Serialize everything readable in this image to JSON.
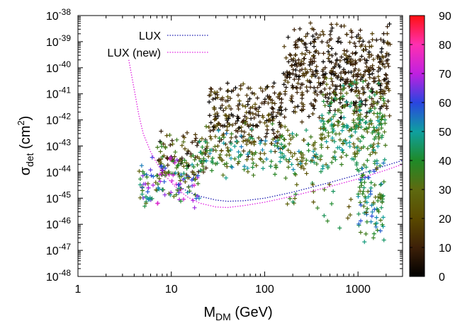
{
  "chart_data": {
    "type": "scatter",
    "xlabel": {
      "main": "M",
      "sub": "DM",
      "rest": " (GeV)"
    },
    "ylabel": {
      "main": "σ",
      "sub": "det",
      "rest": " (cm",
      "sup": "2",
      "close": ")"
    },
    "x_scale": "log",
    "y_scale": "log",
    "xlim": [
      1,
      3000
    ],
    "ylim": [
      1e-48,
      1e-38
    ],
    "x_ticks": [
      {
        "value": 1,
        "label": "1"
      },
      {
        "value": 10,
        "label": "10"
      },
      {
        "value": 100,
        "label": "100"
      },
      {
        "value": 1000,
        "label": "1000"
      }
    ],
    "y_ticks": [
      {
        "value": 1e-48,
        "base": "10",
        "exp": "-48"
      },
      {
        "value": 1e-47,
        "base": "10",
        "exp": "-47"
      },
      {
        "value": 1e-46,
        "base": "10",
        "exp": "-46"
      },
      {
        "value": 1e-45,
        "base": "10",
        "exp": "-45"
      },
      {
        "value": 1e-44,
        "base": "10",
        "exp": "-44"
      },
      {
        "value": 1e-43,
        "base": "10",
        "exp": "-43"
      },
      {
        "value": 1e-42,
        "base": "10",
        "exp": "-42"
      },
      {
        "value": 1e-41,
        "base": "10",
        "exp": "-41"
      },
      {
        "value": 1e-40,
        "base": "10",
        "exp": "-40"
      },
      {
        "value": 1e-39,
        "base": "10",
        "exp": "-39"
      },
      {
        "value": 1e-38,
        "base": "10",
        "exp": "-38"
      }
    ],
    "colorbar": {
      "range": [
        0,
        90
      ],
      "ticks": [
        "0",
        "10",
        "20",
        "30",
        "40",
        "50",
        "60",
        "70",
        "80",
        "90"
      ],
      "gradient": [
        "#000000",
        "#3d2008",
        "#5a4a00",
        "#5e6a10",
        "#1f8a28",
        "#0fa0a0",
        "#2a45e0",
        "#c020e0",
        "#ff30b0",
        "#ff1010"
      ]
    },
    "legend_position": "top-left",
    "lines": [
      {
        "name": "LUX",
        "color": "#1a1ab0",
        "style": "dotted",
        "points": [
          [
            12,
            3e-45
          ],
          [
            15,
            1.8e-45
          ],
          [
            20,
            1.2e-45
          ],
          [
            30,
            8.5e-46
          ],
          [
            40,
            7.6e-46
          ],
          [
            60,
            8e-46
          ],
          [
            100,
            1e-45
          ],
          [
            200,
            1.7e-45
          ],
          [
            500,
            4e-45
          ],
          [
            1000,
            8e-45
          ],
          [
            2000,
            1.8e-44
          ],
          [
            3000,
            2.8e-44
          ]
        ]
      },
      {
        "name": "LUX (new)",
        "color": "#e020e0",
        "style": "dotted",
        "points": [
          [
            3.5,
            2e-40
          ],
          [
            4,
            1.5e-41
          ],
          [
            4.5,
            1.5e-42
          ],
          [
            5,
            3e-43
          ],
          [
            6,
            6e-44
          ],
          [
            7,
            2.2e-44
          ],
          [
            8,
            1e-44
          ],
          [
            10,
            4e-45
          ],
          [
            12,
            2e-45
          ],
          [
            15,
            1.1e-45
          ],
          [
            20,
            6.5e-46
          ],
          [
            30,
            4.6e-46
          ],
          [
            40,
            4.4e-46
          ],
          [
            60,
            5.2e-46
          ],
          [
            100,
            7e-46
          ],
          [
            200,
            1.2e-45
          ],
          [
            500,
            2.8e-45
          ],
          [
            1000,
            5.5e-45
          ],
          [
            2000,
            1.2e-44
          ],
          [
            3000,
            2e-44
          ]
        ]
      }
    ],
    "scatter_clusters": [
      {
        "lx": [
          2.2,
          3.35
        ],
        "ly": [
          -42.2,
          -38.1
        ],
        "c": [
          0,
          18
        ],
        "n": 520
      },
      {
        "lx": [
          1.4,
          2.2
        ],
        "ly": [
          -43.5,
          -40.4
        ],
        "c": [
          0,
          22
        ],
        "n": 240
      },
      {
        "lx": [
          0.85,
          1.4
        ],
        "ly": [
          -44.6,
          -42.3
        ],
        "c": [
          0,
          40
        ],
        "n": 110
      },
      {
        "lx": [
          0.65,
          1.3
        ],
        "ly": [
          -45.5,
          -43.3
        ],
        "c": [
          25,
          75
        ],
        "n": 120
      },
      {
        "lx": [
          1.3,
          2.6
        ],
        "ly": [
          -44.5,
          -42.0
        ],
        "c": [
          20,
          55
        ],
        "n": 200
      },
      {
        "lx": [
          2.6,
          3.3
        ],
        "ly": [
          -44.3,
          -40.2
        ],
        "c": [
          25,
          50
        ],
        "n": 260
      },
      {
        "lx": [
          3.0,
          3.28
        ],
        "ly": [
          -46.8,
          -43.5
        ],
        "c": [
          30,
          60
        ],
        "n": 90
      },
      {
        "lx": [
          2.2,
          3.1
        ],
        "ly": [
          -46.5,
          -44.0
        ],
        "c": [
          20,
          45
        ],
        "n": 25
      }
    ]
  }
}
